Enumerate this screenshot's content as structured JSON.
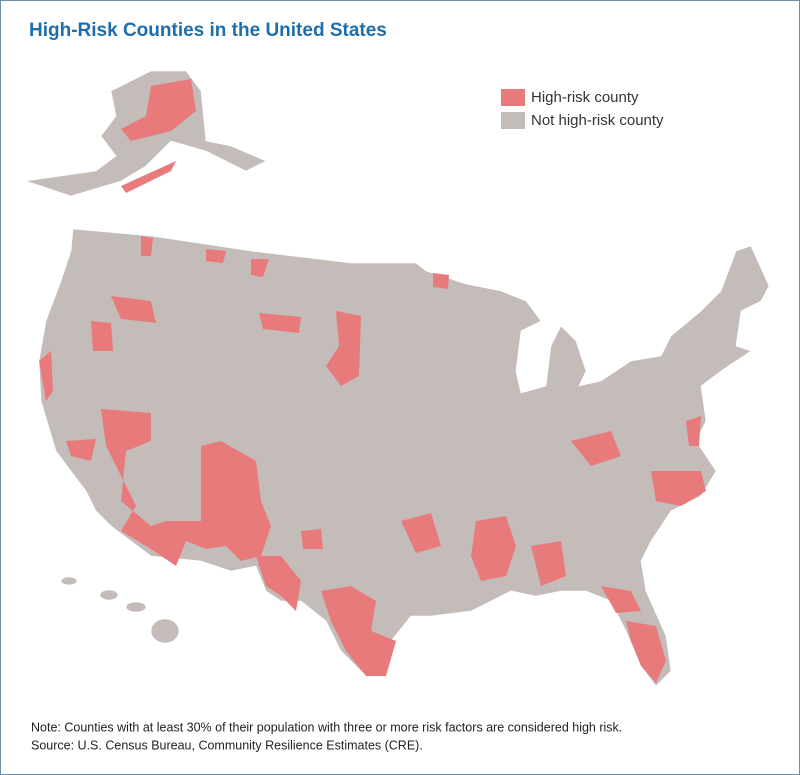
{
  "header": {
    "title": "High-Risk Counties in the United States"
  },
  "legend": {
    "items": [
      {
        "label": "High-risk county",
        "color": "#e87a7c"
      },
      {
        "label": "Not high-risk county",
        "color": "#c4bcb9"
      }
    ]
  },
  "footer": {
    "note": "Note: Counties with at least 30% of their population with three or more risk factors are considered high risk.",
    "source": "Source: U.S. Census Bureau, Community Resilience Estimates (CRE)."
  }
}
